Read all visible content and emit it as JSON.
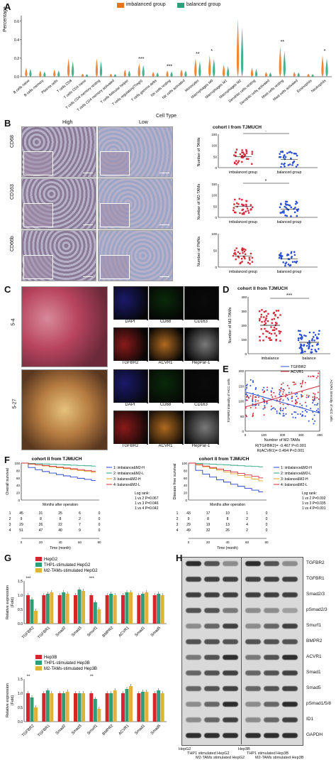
{
  "panels": {
    "A": "A",
    "B": "B",
    "C": "C",
    "D": "D",
    "E": "E",
    "F": "F",
    "G": "G",
    "H": "H"
  },
  "panel_a": {
    "legend": [
      "imbalanced group",
      "balanced group"
    ],
    "colors": {
      "imbalanced": "#e8731a",
      "balanced": "#28a37a"
    },
    "ylabel": "Percentage",
    "xlabel": "Cell Type",
    "yticks": [
      "0.0",
      "0.2",
      "0.4",
      "0.6"
    ],
    "cell_types": [
      "B cells naive",
      "B cells memory",
      "Plasma cells",
      "T cells CD8",
      "T cells CD4 naive",
      "T cells CD4 memory resting",
      "T cells CD4 memory activated",
      "T cells follicular helper",
      "T cells regulatory(Tregs)",
      "T cells gamma delta",
      "NK cells resting",
      "NK cells activated",
      "Monocytes",
      "Macrophages M0",
      "Macrophages M1",
      "Macrophages M2",
      "Dendritic cells resting",
      "Dendritic cells activated",
      "Mast cells resting",
      "Mast cells activated",
      "Eosinophils",
      "Neutrophils"
    ],
    "significance": [
      {
        "index": 8,
        "label": "***"
      },
      {
        "index": 10,
        "label": "***"
      },
      {
        "index": 12,
        "label": "**"
      },
      {
        "index": 13,
        "label": "*"
      },
      {
        "index": 18,
        "label": "**"
      },
      {
        "index": 21,
        "label": "*"
      }
    ]
  },
  "panel_b": {
    "col_high": "High",
    "col_low": "Low",
    "rows": [
      "CD68",
      "CD163",
      "CD66b"
    ],
    "cohort_title": "cohort I from TJMUCH",
    "plots": [
      {
        "ylabel": "Number of TAMs",
        "ticks": [
          "0",
          "50",
          "100",
          "150"
        ],
        "sig": "*"
      },
      {
        "ylabel": "Number of M2-TAMs",
        "ticks": [
          "0",
          "50",
          "100",
          "150"
        ],
        "sig": "*"
      },
      {
        "ylabel": "Number of PMNs",
        "ticks": [
          "0",
          "50",
          "100"
        ],
        "sig": ""
      }
    ],
    "groups": [
      "imbalanced group",
      "balanced group"
    ]
  },
  "panel_c": {
    "samples": [
      "5-4",
      "5-27"
    ],
    "channels_top": [
      "DAPI",
      "CD68",
      "CD163"
    ],
    "channels_bottom": [
      "TGFBR2",
      "ACVR1",
      "HepPar-1"
    ]
  },
  "panel_d": {
    "title": "cohort II from TJMUCH",
    "ylabel": "Number of M2-TAMs",
    "yticks": [
      "0",
      "100",
      "200",
      "300",
      "400"
    ],
    "groups": [
      "imbalance",
      "balance"
    ],
    "sig": "***"
  },
  "panel_e": {
    "legend": [
      "TGFBR2",
      "ACVR1"
    ],
    "ylabel_left": "TGFBR2 intensity of HCC cells",
    "ylabel_right": "ACVR1 intensity of HCC cells",
    "xlabel": "Number of M2-TAMs",
    "xticks": [
      "0",
      "100",
      "200",
      "300",
      "400"
    ],
    "yticks_left": [
      "0",
      "50",
      "100",
      "150",
      "200"
    ],
    "stat1": "R(TGFBR2)= -0.467  P<0.001",
    "stat2": "R(ACVR1)= 0.494  P<0.001"
  },
  "panel_f": {
    "title": "cohort II from TJMUCH",
    "left": {
      "ylabel": "Overall survival",
      "xlabel": "Months after operation",
      "legend": [
        "1: imbalance&M2-H",
        "2: imbalance&M2-L",
        "3: balance&M2-H",
        "4: balance&M2-L"
      ],
      "logrank": [
        "Log rank:",
        "1 vs 2  P=0.067",
        "1 vs 3  P=0.046",
        "1 vs 4  P=0.042"
      ],
      "risk_rows": [
        [
          "1",
          "45",
          "31",
          "25",
          "6",
          "0"
        ],
        [
          "2",
          "9",
          "8",
          "8",
          "2",
          "0"
        ],
        [
          "3",
          "29",
          "26",
          "22",
          "7",
          "0"
        ],
        [
          "4",
          "51",
          "47",
          "40",
          "9",
          "0"
        ]
      ],
      "risk_xlabel": "Time (month)",
      "risk_ticks": [
        "0",
        "20",
        "40",
        "60",
        "80"
      ]
    },
    "right": {
      "ylabel": "Disease free survival",
      "xlabel": "Months after operation",
      "legend": [
        "1: imbalance&M2-H",
        "2: imbalance&M2-L",
        "3: balance&M2-H",
        "4: balance&M2-L"
      ],
      "logrank": [
        "Log rank:",
        "1 vs 2  P=0.002",
        "1 vs 3  P=0.035",
        "1 vs 4  P=0.001"
      ],
      "risk_rows": [
        [
          "1",
          "43",
          "17",
          "10",
          "1",
          "0"
        ],
        [
          "2",
          "9",
          "8",
          "8",
          "2",
          "0"
        ],
        [
          "3",
          "29",
          "19",
          "13",
          "4",
          "0"
        ],
        [
          "4",
          "49",
          "32",
          "26",
          "2",
          "0"
        ]
      ],
      "risk_xlabel": "Time (month)",
      "risk_ticks": [
        "0",
        "20",
        "40",
        "60",
        "80"
      ]
    },
    "yticks": [
      "0",
      "20",
      "40",
      "60",
      "80",
      "100"
    ]
  },
  "panel_g": {
    "ylabel": "Relative expression\n(Fold)",
    "top_legend": [
      "HepG2",
      "THP1-stimulated HepG2",
      "M2-TAMs-stimulated HepG2"
    ],
    "bottom_legend": [
      "Hep3B",
      "THP1-stimulated Hep3B",
      "M2-TAMs-stimulated Hep3B"
    ],
    "colors": [
      "#d6262c",
      "#2f9d7a",
      "#e0b23a"
    ],
    "genes": [
      "TGFBR2",
      "TGFBR1",
      "Smad2",
      "Smad3",
      "Smurf1",
      "BMPR2",
      "ACVR1",
      "Smad1",
      "Smad5"
    ],
    "yticks": [
      "0.0",
      "0.5",
      "1.0",
      "1.5"
    ]
  },
  "panel_h": {
    "proteins": [
      "TGFBR2",
      "TGFBR1",
      "Smad2/3",
      "pSmad2/3",
      "Smurf1",
      "BMPR2",
      "ACVR1",
      "Smad1",
      "Smad5",
      "pSmad1/5/8",
      "ID1",
      "GAPDH"
    ],
    "left_lanes": [
      "HepG2",
      "THP1 stimulated HepG2",
      "M2-TAMs stimulated HepG2"
    ],
    "right_lanes": [
      "Hep3B",
      "THP1 stimulated Hep3B",
      "M2-TAMs stimulated Hep3B"
    ]
  },
  "chart_data": [
    {
      "type": "bar",
      "title": "",
      "ylabel": "Relative expression (Fold)",
      "categories": [
        "TGFBR2",
        "TGFBR1",
        "Smad2",
        "Smad3",
        "Smurf1",
        "BMPR2",
        "ACVR1",
        "Smad1",
        "Smad5"
      ],
      "ylim": [
        0,
        1.5
      ],
      "series": [
        {
          "name": "HepG2",
          "values": [
            1.0,
            1.0,
            1.0,
            1.0,
            1.0,
            1.0,
            1.0,
            1.0,
            1.0
          ]
        },
        {
          "name": "THP1-stimulated HepG2",
          "values": [
            0.85,
            1.05,
            1.1,
            1.2,
            0.75,
            1.05,
            1.1,
            1.05,
            1.05
          ]
        },
        {
          "name": "M2-TAMs-stimulated HepG2",
          "values": [
            0.45,
            1.1,
            1.05,
            1.15,
            0.5,
            1.0,
            1.1,
            1.1,
            1.0
          ]
        }
      ]
    },
    {
      "type": "bar",
      "title": "",
      "ylabel": "Relative expression (Fold)",
      "categories": [
        "TGFBR2",
        "TGFBR1",
        "Smad2",
        "Smad3",
        "Smurf1",
        "BMPR2",
        "ACVR1",
        "Smad1",
        "Smad5"
      ],
      "ylim": [
        0,
        1.5
      ],
      "series": [
        {
          "name": "Hep3B",
          "values": [
            1.0,
            1.0,
            1.0,
            1.0,
            1.0,
            1.0,
            1.0,
            1.0,
            1.0
          ]
        },
        {
          "name": "THP1-stimulated Hep3B",
          "values": [
            0.85,
            1.1,
            1.0,
            1.0,
            0.8,
            1.0,
            1.15,
            1.05,
            1.1
          ]
        },
        {
          "name": "M2-TAMs-stimulated Hep3B",
          "values": [
            0.5,
            1.0,
            1.05,
            1.0,
            0.45,
            1.1,
            1.25,
            1.05,
            1.0
          ]
        }
      ]
    }
  ]
}
